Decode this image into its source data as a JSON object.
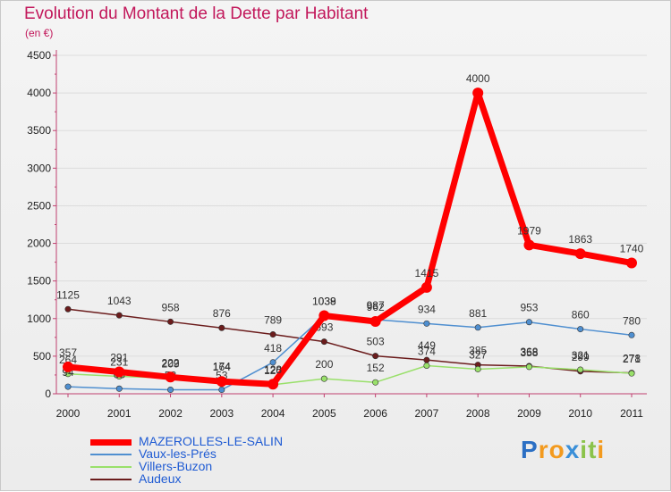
{
  "chart_data": {
    "type": "line",
    "title": "Evolution du Montant de la Dette par Habitant",
    "subtitle": "(en €)",
    "xlabel": "",
    "ylabel": "",
    "ylim": [
      0,
      4500
    ],
    "yticks": [
      0,
      500,
      1000,
      1500,
      2000,
      2500,
      3000,
      3500,
      4000,
      4500
    ],
    "categories": [
      "2000",
      "2001",
      "2002",
      "2003",
      "2004",
      "2005",
      "2006",
      "2007",
      "2008",
      "2009",
      "2010",
      "2011"
    ],
    "legend_position": "bottom-left",
    "series": [
      {
        "name": "Audeux",
        "color": "#6b1c1c",
        "values": [
          1125,
          1043,
          958,
          876,
          789,
          693,
          503,
          449,
          385,
          368,
          299,
          278
        ]
      },
      {
        "name": "Villers-Buzon",
        "color": "#99e06a",
        "values": [
          264,
          231,
          209,
          174,
          120,
          200,
          152,
          374,
          327,
          358,
          321,
          271
        ]
      },
      {
        "name": "Vaux-les-Prés",
        "color": "#4f8fd0",
        "values": [
          94,
          68,
          53,
          53,
          418,
          1038,
          987,
          934,
          881,
          953,
          860,
          780
        ]
      },
      {
        "name": "MAZEROLLES-LE-SALIN",
        "color": "#ff0000",
        "values": [
          357,
          291,
          222,
          164,
          128,
          1039,
          962,
          1415,
          4000,
          1979,
          1863,
          1740
        ]
      }
    ]
  },
  "legend": {
    "items": [
      "MAZEROLLES-LE-SALIN",
      "Vaux-les-Prés",
      "Villers-Buzon",
      "Audeux"
    ]
  },
  "watermark": {
    "letters": [
      "P",
      "r",
      "o",
      "x",
      "i",
      "t",
      "i"
    ],
    "colors": [
      "#2b6fc4",
      "#f39a1e",
      "#f39a1e",
      "#3a8fd8",
      "#8bc34a",
      "#8bc34a",
      "#f39a1e"
    ]
  }
}
